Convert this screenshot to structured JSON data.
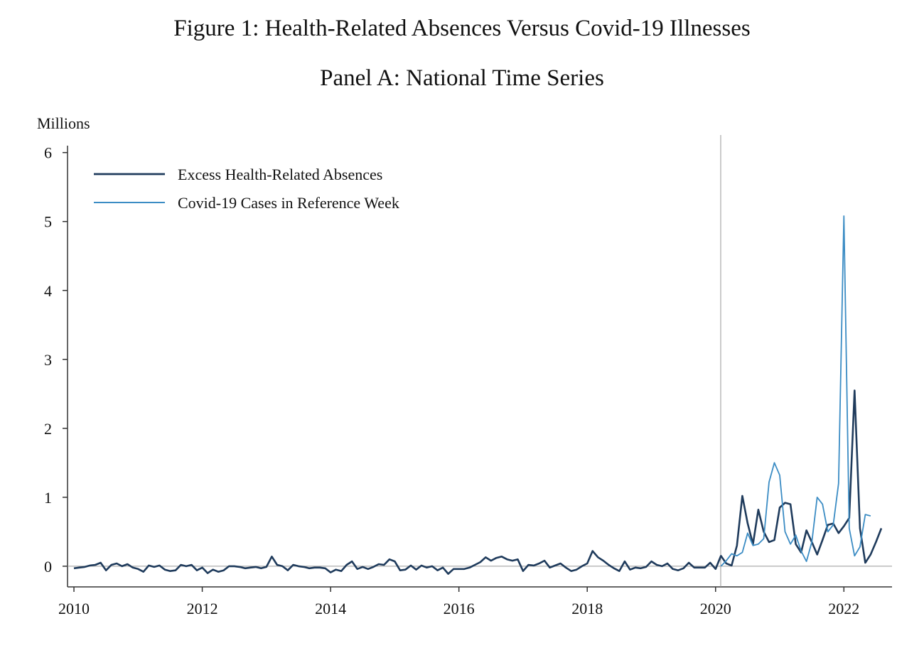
{
  "figure_title": "Figure 1: Health-Related Absences Versus Covid-19 Illnesses",
  "panel_title": "Panel A: National Time Series",
  "chart_data": {
    "type": "line",
    "ylabel": "Millions",
    "xlim": [
      2009.9,
      2022.75
    ],
    "ylim": [
      -0.3,
      6.1
    ],
    "x_ticks": [
      2010,
      2012,
      2014,
      2016,
      2018,
      2020,
      2022
    ],
    "x_tick_labels": [
      "2010",
      "2012",
      "2014",
      "2016",
      "2018",
      "2020",
      "2022"
    ],
    "y_ticks": [
      0,
      1,
      2,
      3,
      4,
      5,
      6
    ],
    "y_tick_labels": [
      "0",
      "1",
      "2",
      "3",
      "4",
      "5",
      "6"
    ],
    "reference_line_x": 2020.08,
    "zero_line": true,
    "grid": false,
    "legend_position": "top-left",
    "colors": {
      "absences": "#1f3b5c",
      "covid": "#3b8cc4",
      "axis": "#333333",
      "reference": "#999999"
    },
    "series": [
      {
        "name": "Excess Health-Related Absences",
        "color": "#1f3b5c",
        "start": [
          2010,
          1
        ],
        "values": [
          -0.03,
          -0.02,
          -0.01,
          0.01,
          0.02,
          0.05,
          -0.06,
          0.02,
          0.04,
          0.0,
          0.03,
          -0.02,
          -0.04,
          -0.08,
          0.01,
          -0.01,
          0.01,
          -0.05,
          -0.07,
          -0.06,
          0.02,
          0.0,
          0.02,
          -0.06,
          -0.02,
          -0.1,
          -0.05,
          -0.08,
          -0.06,
          0.0,
          0.0,
          -0.01,
          -0.03,
          -0.02,
          -0.01,
          -0.03,
          -0.01,
          0.14,
          0.02,
          0.0,
          -0.06,
          0.02,
          0.0,
          -0.01,
          -0.03,
          -0.02,
          -0.02,
          -0.03,
          -0.09,
          -0.05,
          -0.07,
          0.02,
          0.07,
          -0.04,
          -0.01,
          -0.04,
          -0.01,
          0.03,
          0.02,
          0.1,
          0.07,
          -0.06,
          -0.05,
          0.01,
          -0.05,
          0.01,
          -0.02,
          0.0,
          -0.06,
          -0.02,
          -0.11,
          -0.04,
          -0.04,
          -0.04,
          -0.02,
          0.02,
          0.06,
          0.13,
          0.08,
          0.12,
          0.14,
          0.1,
          0.08,
          0.1,
          -0.07,
          0.02,
          0.01,
          0.04,
          0.08,
          -0.02,
          0.01,
          0.04,
          -0.02,
          -0.07,
          -0.05,
          0.0,
          0.04,
          0.22,
          0.13,
          0.08,
          0.02,
          -0.03,
          -0.07,
          0.07,
          -0.05,
          -0.02,
          -0.03,
          -0.01,
          0.07,
          0.02,
          0.0,
          0.04,
          -0.04,
          -0.06,
          -0.03,
          0.05,
          -0.02,
          -0.02,
          -0.02,
          0.05,
          -0.04,
          0.15,
          0.04,
          0.01,
          0.3,
          1.02,
          0.62,
          0.32,
          0.82,
          0.5,
          0.35,
          0.38,
          0.85,
          0.92,
          0.9,
          0.32,
          0.2,
          0.52,
          0.35,
          0.17,
          0.38,
          0.6,
          0.62,
          0.48,
          0.58,
          0.7,
          2.55,
          0.55,
          0.05,
          0.17,
          0.35,
          0.55
        ]
      },
      {
        "name": "Covid-19 Cases in Reference Week",
        "color": "#3b8cc4",
        "start": [
          2020,
          2
        ],
        "values": [
          0.0,
          0.08,
          0.18,
          0.15,
          0.2,
          0.48,
          0.3,
          0.32,
          0.4,
          1.22,
          1.5,
          1.32,
          0.5,
          0.32,
          0.45,
          0.22,
          0.07,
          0.35,
          1.0,
          0.9,
          0.5,
          0.6,
          1.2,
          5.08,
          0.55,
          0.15,
          0.28,
          0.75,
          0.73
        ]
      }
    ]
  }
}
